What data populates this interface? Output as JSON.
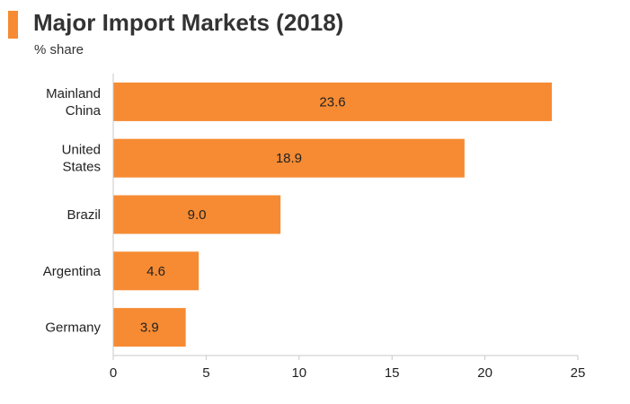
{
  "header": {
    "title": "Major Import Markets (2018)",
    "subtitle": "% share"
  },
  "colors": {
    "accent": "#f68b33",
    "bar": "#f68b33",
    "axis": "#c8c8c8",
    "text": "#222222"
  },
  "chart_data": {
    "type": "bar",
    "orientation": "horizontal",
    "title": "Major Import Markets (2018)",
    "subtitle": "% share",
    "categories": [
      [
        "Mainland",
        "China"
      ],
      [
        "United",
        "States"
      ],
      [
        "Brazil"
      ],
      [
        "Argentina"
      ],
      [
        "Germany"
      ]
    ],
    "values": [
      23.6,
      18.9,
      9.0,
      4.6,
      3.9
    ],
    "data_labels": [
      "23.6",
      "18.9",
      "9.0",
      "4.6",
      "3.9"
    ],
    "xlim": [
      0,
      25
    ],
    "x_ticks": [
      0,
      5,
      10,
      15,
      20,
      25
    ],
    "x_tick_labels": [
      "0",
      "5",
      "10",
      "15",
      "20",
      "25"
    ],
    "xlabel": "",
    "ylabel": "",
    "grid": false,
    "legend": "none"
  }
}
